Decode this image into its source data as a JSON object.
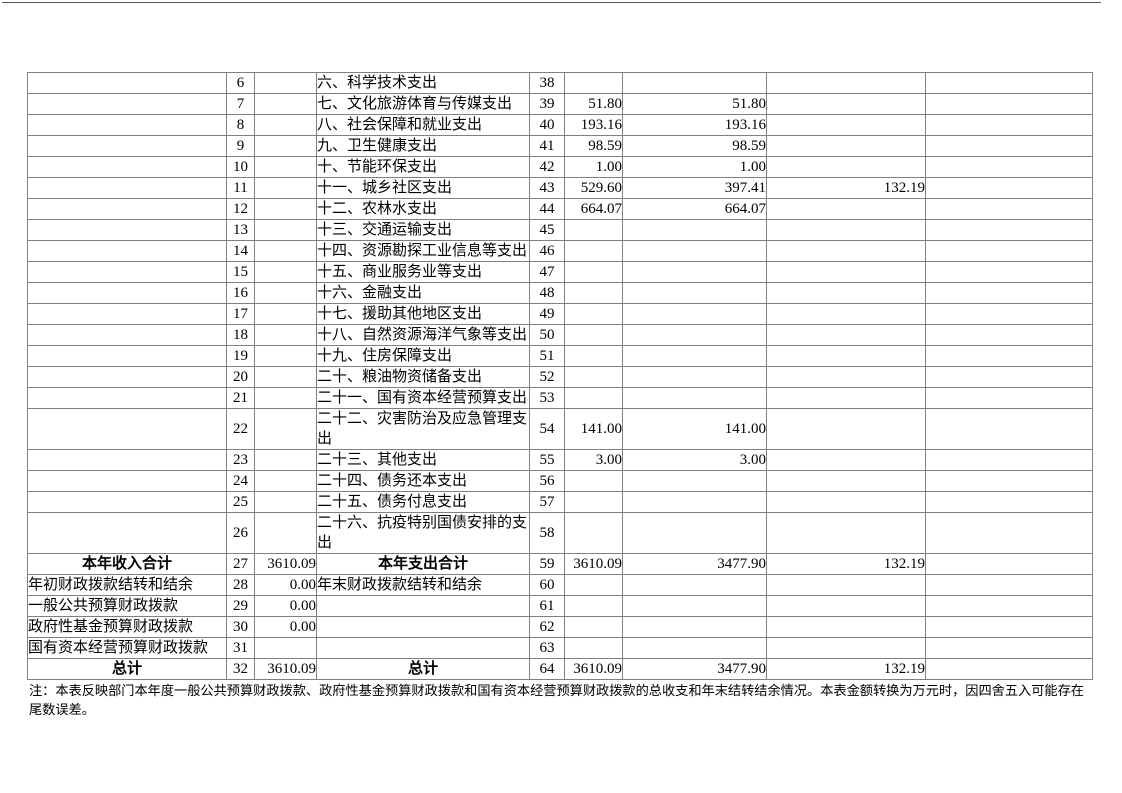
{
  "colors": {
    "grid_line": "#808080",
    "text": "#000000",
    "background": "#ffffff"
  },
  "table": {
    "rows": [
      {
        "ln": "6",
        "r": "六、科学技术支出",
        "rn": "38"
      },
      {
        "ln": "7",
        "r": "七、文化旅游体育与传媒支出",
        "rn": "39",
        "v1": "51.80",
        "v2": "51.80"
      },
      {
        "ln": "8",
        "r": "八、社会保障和就业支出",
        "rn": "40",
        "v1": "193.16",
        "v2": "193.16"
      },
      {
        "ln": "9",
        "r": "九、卫生健康支出",
        "rn": "41",
        "v1": "98.59",
        "v2": "98.59"
      },
      {
        "ln": "10",
        "r": "十、节能环保支出",
        "rn": "42",
        "v1": "1.00",
        "v2": "1.00"
      },
      {
        "ln": "11",
        "r": "十一、城乡社区支出",
        "rn": "43",
        "v1": "529.60",
        "v2": "397.41",
        "v3": "132.19"
      },
      {
        "ln": "12",
        "r": "十二、农林水支出",
        "rn": "44",
        "v1": "664.07",
        "v2": "664.07"
      },
      {
        "ln": "13",
        "r": "十三、交通运输支出",
        "rn": "45"
      },
      {
        "ln": "14",
        "r": "十四、资源勘探工业信息等支出",
        "rn": "46"
      },
      {
        "ln": "15",
        "r": "十五、商业服务业等支出",
        "rn": "47"
      },
      {
        "ln": "16",
        "r": "十六、金融支出",
        "rn": "48"
      },
      {
        "ln": "17",
        "r": "十七、援助其他地区支出",
        "rn": "49"
      },
      {
        "ln": "18",
        "r": "十八、自然资源海洋气象等支出",
        "rn": "50"
      },
      {
        "ln": "19",
        "r": "十九、住房保障支出",
        "rn": "51"
      },
      {
        "ln": "20",
        "r": "二十、粮油物资储备支出",
        "rn": "52"
      },
      {
        "ln": "21",
        "r": "二十一、国有资本经营预算支出",
        "rn": "53"
      },
      {
        "ln": "22",
        "r": "二十二、灾害防治及应急管理支出",
        "rn": "54",
        "v1": "141.00",
        "v2": "141.00",
        "tall": true
      },
      {
        "ln": "23",
        "r": "二十三、其他支出",
        "rn": "55",
        "v1": "3.00",
        "v2": "3.00"
      },
      {
        "ln": "24",
        "r": "二十四、债务还本支出",
        "rn": "56"
      },
      {
        "ln": "25",
        "r": "二十五、债务付息支出",
        "rn": "57"
      },
      {
        "ln": "26",
        "r": "二十六、抗疫特别国债安排的支出",
        "rn": "58",
        "tall": true
      },
      {
        "l": "本年收入合计",
        "ln": "27",
        "lv": "3610.09",
        "r": "本年支出合计",
        "rn": "59",
        "v1": "3610.09",
        "v2": "3477.90",
        "v3": "132.19",
        "bold": true
      },
      {
        "l": "年初财政拨款结转和结余",
        "ln": "28",
        "lv": "0.00",
        "r": "年末财政拨款结转和结余",
        "rn": "60"
      },
      {
        "l": "一般公共预算财政拨款",
        "ln": "29",
        "lv": "0.00",
        "rn": "61"
      },
      {
        "l": "政府性基金预算财政拨款",
        "ln": "30",
        "lv": "0.00",
        "rn": "62"
      },
      {
        "l": "国有资本经营预算财政拨款",
        "ln": "31",
        "rn": "63"
      },
      {
        "l": "总计",
        "ln": "32",
        "lv": "3610.09",
        "r": "总计",
        "rn": "64",
        "v1": "3610.09",
        "v2": "3477.90",
        "v3": "132.19",
        "bold": true
      }
    ]
  },
  "footnote": "注：本表反映部门本年度一般公共预算财政拨款、政府性基金预算财政拨款和国有资本经营预算财政拨款的总收支和年末结转结余情况。本表金额转换为万元时，因四舍五入可能存在尾数误差。"
}
